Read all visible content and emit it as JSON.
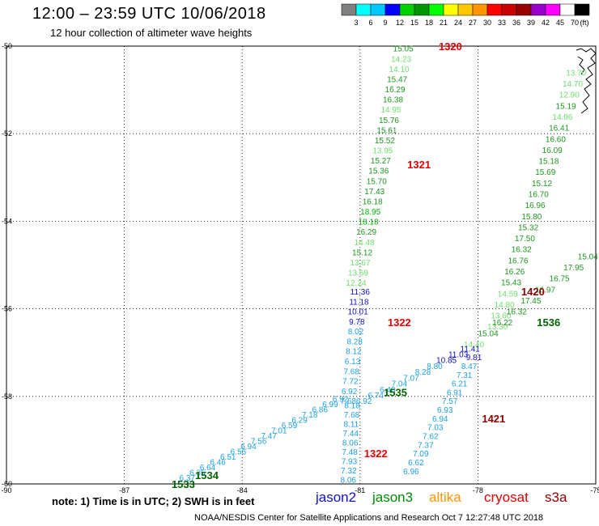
{
  "header": {
    "title": "12:00 – 23:59 UTC 10/06/2018",
    "subtitle": "12 hour collection of altimeter wave heights"
  },
  "colorbar": {
    "labels": [
      "3",
      "6",
      "9",
      "12",
      "15",
      "18",
      "21",
      "24",
      "27",
      "30",
      "33",
      "36",
      "39",
      "42",
      "45",
      "70"
    ],
    "unit": "(ft)",
    "colors": [
      "#808080",
      "#00ffff",
      "#00c8ff",
      "#0000ff",
      "#00d000",
      "#009600",
      "#00ff00",
      "#ffff00",
      "#ffc800",
      "#ff9600",
      "#ff0000",
      "#c80000",
      "#960000",
      "#9600c8",
      "#ff00ff",
      "#ffffff",
      "#000000"
    ]
  },
  "axes": {
    "x_ticks": [
      "-90",
      "-87",
      "-84",
      "-81",
      "-78",
      "-75"
    ],
    "y_ticks": [
      "-50",
      "-52",
      "-54",
      "-56",
      "-58",
      "-60"
    ]
  },
  "passes": [
    {
      "label": "1320",
      "lon": -78.7,
      "lat": -50.0,
      "color": "#e00000"
    },
    {
      "label": "1321",
      "lon": -79.5,
      "lat": -52.7,
      "color": "#e00000"
    },
    {
      "label": "1322",
      "lon": -80.0,
      "lat": -56.3,
      "color": "#e00000"
    },
    {
      "label": "1322",
      "lon": -80.6,
      "lat": -59.3,
      "color": "#e00000"
    },
    {
      "label": "1420",
      "lon": -76.6,
      "lat": -55.6,
      "color": "#8b0000"
    },
    {
      "label": "1421",
      "lon": -77.6,
      "lat": -58.5,
      "color": "#8b0000"
    },
    {
      "label": "1536",
      "lon": -76.2,
      "lat": -56.3,
      "color": "#006400"
    },
    {
      "label": "1535",
      "lon": -80.1,
      "lat": -57.9,
      "color": "#006400"
    },
    {
      "label": "1534",
      "lon": -84.9,
      "lat": -59.8,
      "color": "#006400"
    },
    {
      "label": "1533",
      "lon": -85.5,
      "lat": -60.0,
      "color": "#006400"
    }
  ],
  "tracks": [
    {
      "name": "1320-1321",
      "lon_start": -79.9,
      "lat_start": -50.05,
      "lon_end": -81.1,
      "lat_end": -55.4,
      "values": [
        15.05,
        14.23,
        14.1,
        15.47,
        16.29,
        16.38,
        14.95,
        15.76,
        15.61,
        15.52,
        13.95,
        15.27,
        15.36,
        15.7,
        17.43,
        16.18,
        18.95,
        18.18,
        16.29,
        14.48,
        15.12,
        13.67,
        13.69,
        12.24
      ]
    },
    {
      "name": "1322-north",
      "lon_start": -81.0,
      "lat_start": -55.6,
      "lon_end": -81.3,
      "lat_end": -58.1,
      "values": [
        11.36,
        11.18,
        10.01,
        9.78,
        8.02,
        8.28,
        8.12,
        6.13,
        7.68,
        7.72,
        6.92,
        7.68
      ]
    },
    {
      "name": "1322-south",
      "lon_start": -81.2,
      "lat_start": -58.2,
      "lon_end": -81.3,
      "lat_end": -59.9,
      "values": [
        8.18,
        7.68,
        8.11,
        7.44,
        8.06,
        7.48,
        7.93,
        7.32,
        8.06
      ]
    },
    {
      "name": "1420",
      "lon_start": -75.5,
      "lat_start": -50.6,
      "lon_end": -77.5,
      "lat_end": -56.4,
      "values": [
        13.7,
        14.7,
        12.9,
        15.19,
        14.96,
        16.41,
        16.6,
        16.09,
        15.18,
        15.69,
        15.12,
        16.7,
        16.96,
        15.8,
        15.32,
        17.5,
        16.32,
        16.76,
        16.26,
        15.43,
        14.59,
        14.8,
        13.6,
        13.3
      ]
    },
    {
      "name": "1421",
      "lon_start": -78.1,
      "lat_start": -57.1,
      "lon_end": -79.7,
      "lat_end": -59.7,
      "values": [
        9.81,
        8.47,
        7.31,
        6.21,
        6.91,
        7.57,
        6.93,
        6.94,
        7.03,
        7.62,
        7.37,
        7.09,
        6.62,
        6.96
      ]
    },
    {
      "name": "1536",
      "lon_start": -75.2,
      "lat_start": -54.8,
      "lon_end": -78.1,
      "lat_end": -56.8,
      "values": [
        15.04,
        17.95,
        16.75,
        16.97,
        17.45,
        16.32,
        16.22,
        15.04,
        14.4
      ]
    },
    {
      "name": "1535",
      "lon_start": -78.2,
      "lat_start": -56.9,
      "lon_end": -80.9,
      "lat_end": -58.1,
      "values": [
        11.41,
        11.03,
        10.85,
        8.8,
        8.28,
        7.07,
        7.04,
        6.48,
        6.74,
        6.92
      ]
    },
    {
      "name": "1534",
      "lon_start": -81.5,
      "lat_start": -58.05,
      "lon_end": -85.4,
      "lat_end": -59.85,
      "values": [
        6.92,
        6.99,
        6.86,
        7.18,
        6.29,
        6.59,
        7.01,
        7.47,
        7.56,
        6.94,
        6.56,
        6.51,
        6.46,
        6.64,
        6.35,
        6.37
      ]
    }
  ],
  "note": "note: 1) Time is in UTC; 2) SWH is in feet",
  "satellites": [
    {
      "name": "jason2",
      "color": "#1010c8"
    },
    {
      "name": "jason3",
      "color": "#008c00"
    },
    {
      "name": "altika",
      "color": "#ff9600"
    },
    {
      "name": "cryosat",
      "color": "#e00000"
    },
    {
      "name": "s3a",
      "color": "#8b0000"
    }
  ],
  "credit": "NOAA/NESDIS Center for Satellite Applications and Research    Oct  7 12:27:48 UTC 2018"
}
